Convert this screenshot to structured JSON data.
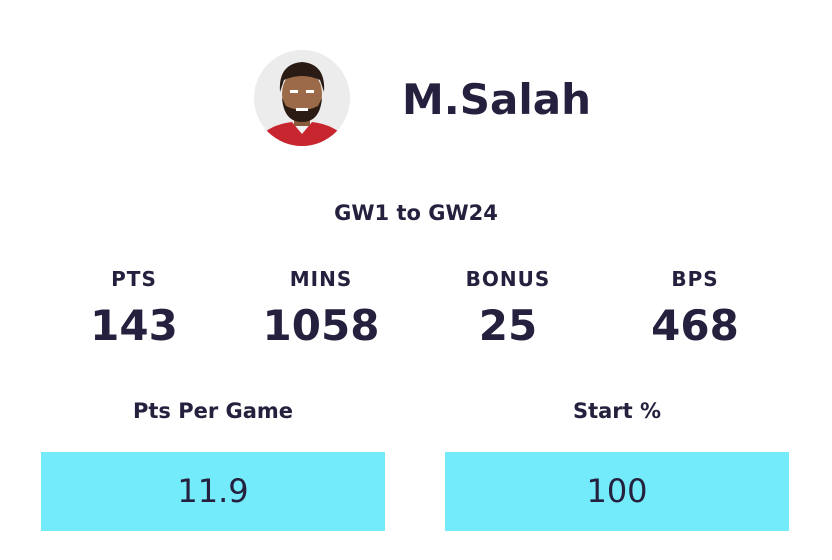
{
  "player": {
    "name": "M.Salah"
  },
  "period": "GW1 to GW24",
  "stats": [
    {
      "label": "PTS",
      "value": 143
    },
    {
      "label": "MINS",
      "value": 1058
    },
    {
      "label": "BONUS",
      "value": 25
    },
    {
      "label": "BPS",
      "value": 468
    }
  ],
  "boxes": [
    {
      "label": "Pts Per Game",
      "value": 11.9
    },
    {
      "label": "Start %",
      "value": 100
    }
  ]
}
